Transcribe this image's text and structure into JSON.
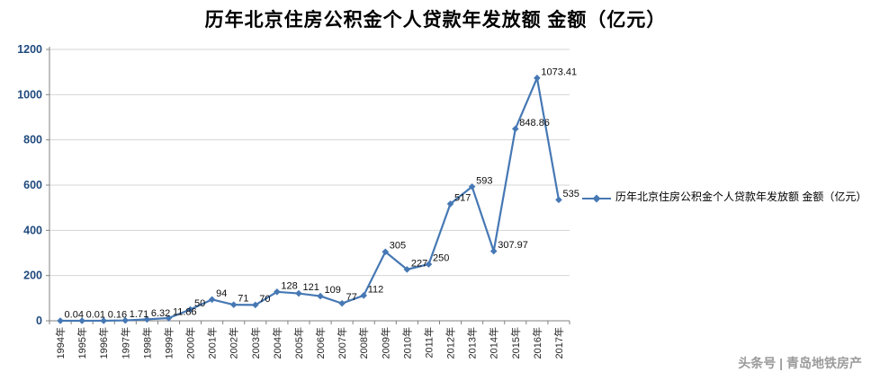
{
  "title": "历年北京住房公积金个人贷款年发放额 金额（亿元）",
  "legend": {
    "label": "历年北京住房公积金个人贷款年发放额 金额（亿元）"
  },
  "watermark": "头条号 | 青岛地铁房产",
  "chart_data": {
    "type": "line",
    "title": "历年北京住房公积金个人贷款年发放额 金额（亿元）",
    "categories": [
      "1994年",
      "1995年",
      "1996年",
      "1997年",
      "1998年",
      "1999年",
      "2000年",
      "2001年",
      "2002年",
      "2003年",
      "2004年",
      "2005年",
      "2006年",
      "2007年",
      "2008年",
      "2009年",
      "2010年",
      "2011年",
      "2012年",
      "2013年",
      "2014年",
      "2015年",
      "2016年",
      "2017年"
    ],
    "series": [
      {
        "name": "历年北京住房公积金个人贷款年发放额 金额（亿元）",
        "values": [
          0.04,
          0.01,
          0.16,
          1.71,
          6.32,
          11.86,
          50,
          94,
          71,
          70,
          128,
          121,
          109,
          77,
          112,
          305,
          227,
          250,
          517,
          593,
          307.97,
          848.86,
          1073.41,
          535
        ]
      }
    ],
    "data_labels": [
      "0.04",
      "0.01",
      "0.16",
      "1.71",
      "6.32",
      "11.86",
      "50",
      "94",
      "71",
      "70",
      "128",
      "121",
      "109",
      "77",
      "112",
      "305",
      "227",
      "250",
      "517",
      "593",
      "307.97",
      "848.86",
      "1073.41",
      "535"
    ],
    "xlabel": "",
    "ylabel": "",
    "ylim": [
      0,
      1200
    ],
    "yticks": [
      0,
      200,
      400,
      600,
      800,
      1000,
      1200
    ],
    "grid": true,
    "legend_position": "right",
    "marker": "diamond",
    "colors": {
      "series": "#4678B4",
      "grid": "#D4D4D4",
      "axis": "#808080",
      "ytick_text": "#1F497D",
      "xtick_text": "#262626",
      "label_text": "#0D0D0D"
    }
  }
}
